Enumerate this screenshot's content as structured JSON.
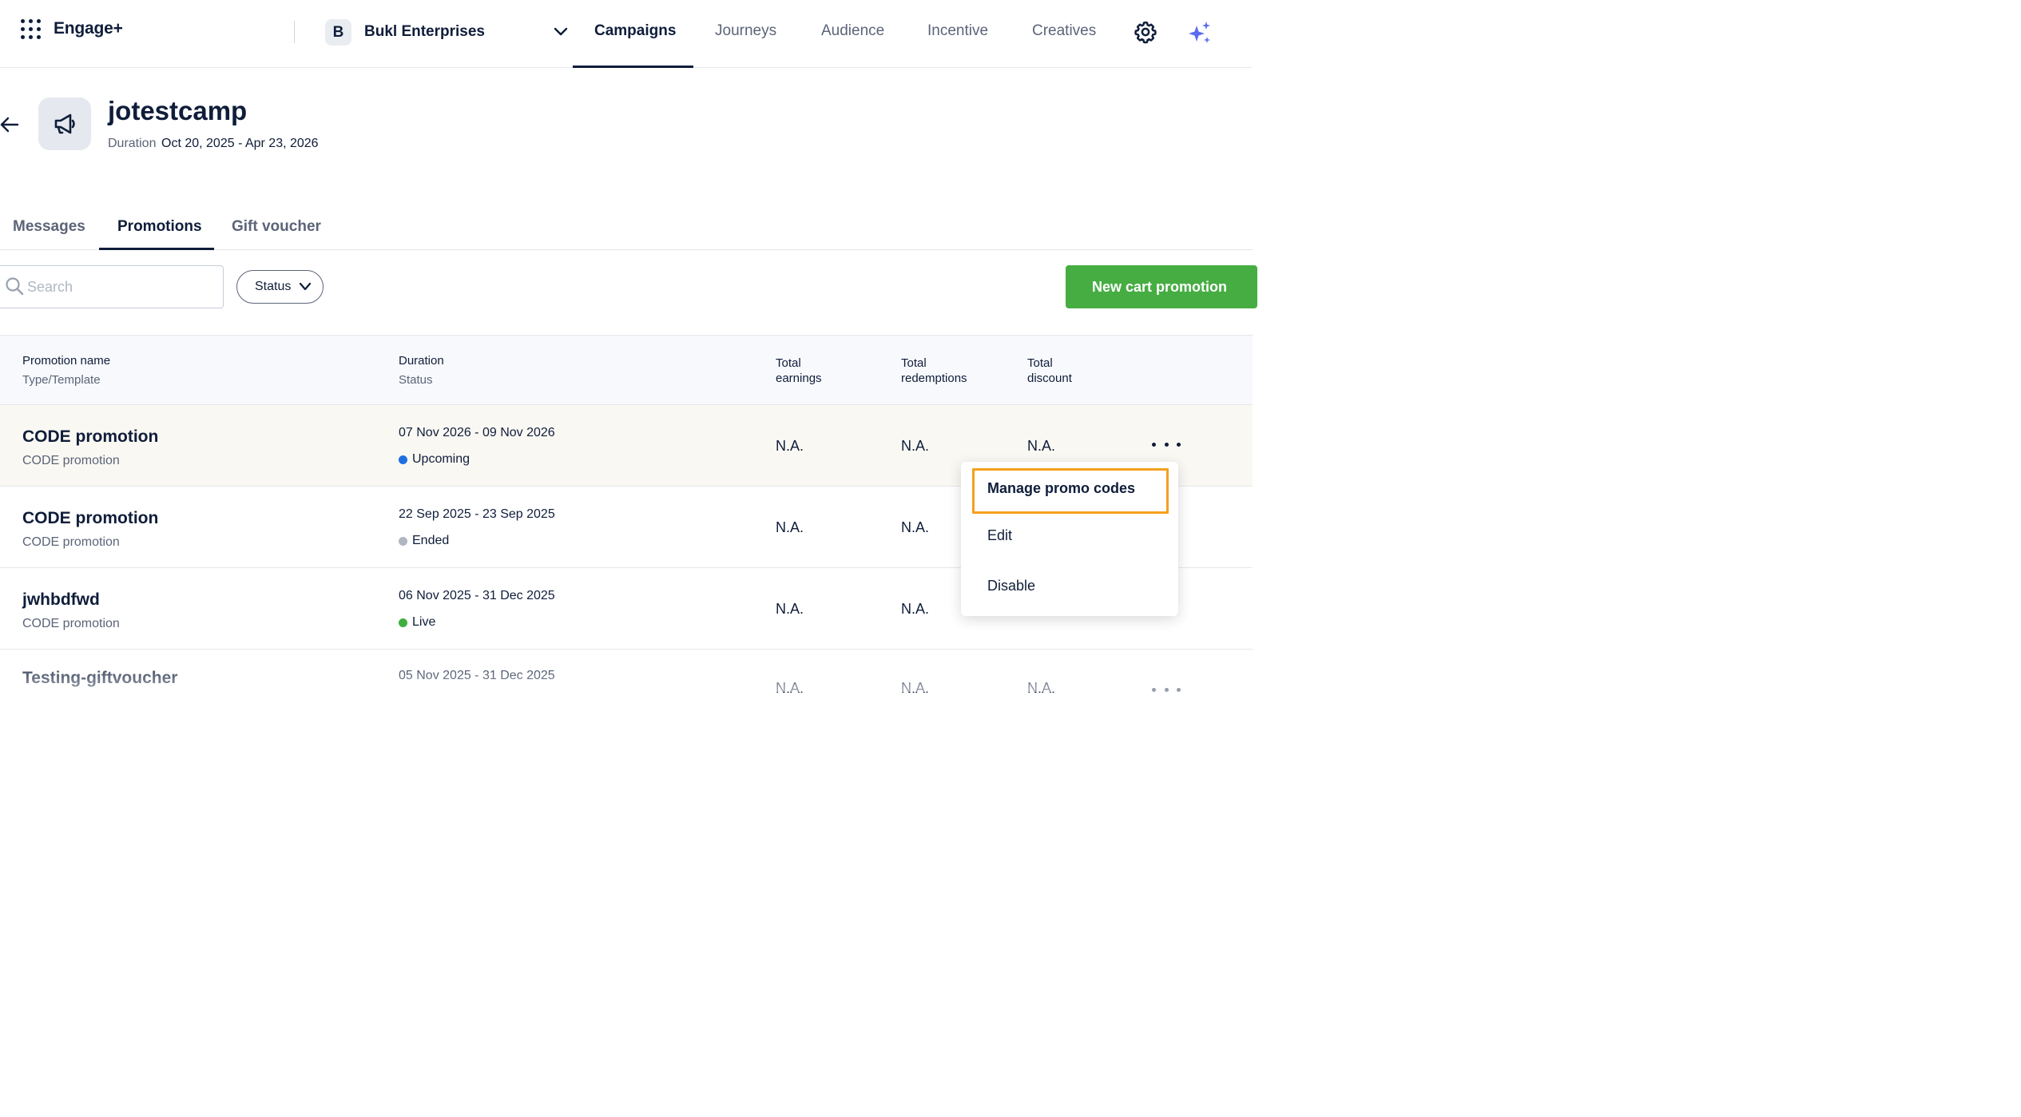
{
  "app": {
    "name": "Engage+"
  },
  "org": {
    "initial": "B",
    "name": "Bukl Enterprises"
  },
  "nav": {
    "items": [
      {
        "label": "Campaigns",
        "active": true
      },
      {
        "label": "Journeys",
        "active": false
      },
      {
        "label": "Audience",
        "active": false
      },
      {
        "label": "Incentive",
        "active": false
      },
      {
        "label": "Creatives",
        "active": false
      }
    ]
  },
  "campaign": {
    "title": "jotestcamp",
    "duration_label": "Duration",
    "duration_value": "Oct 20, 2025 - Apr 23, 2026"
  },
  "tabs": [
    {
      "label": "Messages",
      "active": false
    },
    {
      "label": "Promotions",
      "active": true
    },
    {
      "label": "Gift voucher",
      "active": false
    }
  ],
  "toolbar": {
    "search_placeholder": "Search",
    "search_value": "",
    "status_filter_label": "Status",
    "primary_button_label": "New cart promotion"
  },
  "table": {
    "headers": {
      "name_main": "Promotion name",
      "name_sub": "Type/Template",
      "duration_main": "Duration",
      "duration_sub": "Status",
      "earnings_line1": "Total",
      "earnings_line2": "earnings",
      "redemptions_line1": "Total",
      "redemptions_line2": "redemptions",
      "discount_line1": "Total",
      "discount_line2": "discount"
    },
    "rows": [
      {
        "name": "CODE promotion",
        "type": "CODE promotion",
        "duration": "07 Nov 2026 - 09 Nov 2026",
        "status": "Upcoming",
        "status_color": "#1f6fe0",
        "earnings": "N.A.",
        "redemptions": "N.A.",
        "discount": "N.A."
      },
      {
        "name": "CODE promotion",
        "type": "CODE promotion",
        "duration": "22 Sep 2025 - 23 Sep 2025",
        "status": "Ended",
        "status_color": "#b0b6c2",
        "earnings": "N.A.",
        "redemptions": "N.A.",
        "discount": ""
      },
      {
        "name": "jwhbdfwd",
        "type": "CODE promotion",
        "duration": "06 Nov 2025 - 31 Dec 2025",
        "status": "Live",
        "status_color": "#3fae3f",
        "earnings": "N.A.",
        "redemptions": "N.A.",
        "discount": ""
      },
      {
        "name": "Testing-giftvoucher",
        "type": "",
        "duration": "05 Nov 2025 - 31 Dec 2025",
        "status": "",
        "status_color": "",
        "earnings": "N.A.",
        "redemptions": "N.A.",
        "discount": "N.A."
      }
    ]
  },
  "row_menu": {
    "items": [
      {
        "label": "Manage promo codes",
        "highlighted": true
      },
      {
        "label": "Edit",
        "highlighted": false
      },
      {
        "label": "Disable",
        "highlighted": false
      }
    ],
    "highlight_color": "#f5a020"
  },
  "colors": {
    "primary_green": "#46ad42",
    "text_dark": "#0f1d3a",
    "text_muted": "#5b6478",
    "sparkle": "#5b6cf0"
  }
}
